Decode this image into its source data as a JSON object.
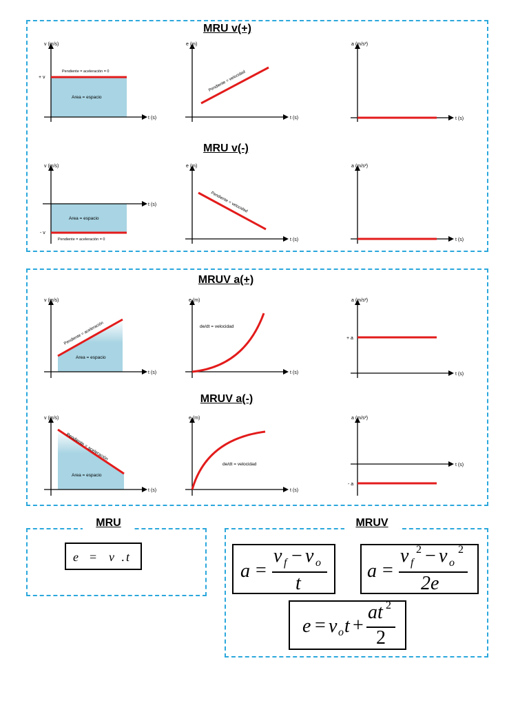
{
  "colors": {
    "accent": "#e31b1b",
    "area": "#a8d4e3",
    "dashed_border": "#2aa7dc"
  },
  "sections": {
    "mru_pos_title": "MRU v(+)",
    "mru_neg_title": "MRU v(-)",
    "mruv_pos_title": "MRUV a(+)",
    "mruv_neg_title": "MRUV a(-)",
    "mru_box_title": "MRU",
    "mruv_box_title": "MRUV"
  },
  "labels": {
    "v_axis": "v (m/s)",
    "e_axis": "e (m)",
    "a_axis": "a (m/s²)",
    "t_axis": "t (s)",
    "plus_v": "+ v",
    "minus_v": "- v",
    "plus_a": "+ a",
    "minus_a": "- a",
    "slope_accel_zero": "Pendiente = aceleración = 0",
    "area_space": "Area = espacio",
    "slope_velocity": "Pendiente = velocidad",
    "slope_accel": "Pendiente = aceleración",
    "derivative_velocity": "de/dt = velocidad"
  },
  "formulas": {
    "mru": {
      "lhs": "e",
      "eq": "=",
      "v": "v",
      "dot": ".",
      "t": "t"
    },
    "mruv_a1": {
      "lhs": "a",
      "eq": "=",
      "num_a": "v",
      "num_a_sub": "f",
      "minus": "−",
      "num_b": "v",
      "num_b_sub": "o",
      "den": "t"
    },
    "mruv_a2": {
      "lhs": "a",
      "eq": "=",
      "num_a": "v",
      "num_a_sub": "f",
      "num_a_sup": "2",
      "minus": "−",
      "num_b": "v",
      "num_b_sub": "o",
      "num_b_sup": "2",
      "den": "2e"
    },
    "mruv_e": {
      "lhs": "e",
      "eq": "=",
      "v": "v",
      "v_sub": "o",
      "t": "t",
      "plus": "+",
      "num": "at",
      "num_sup": "2",
      "den": "2"
    }
  }
}
